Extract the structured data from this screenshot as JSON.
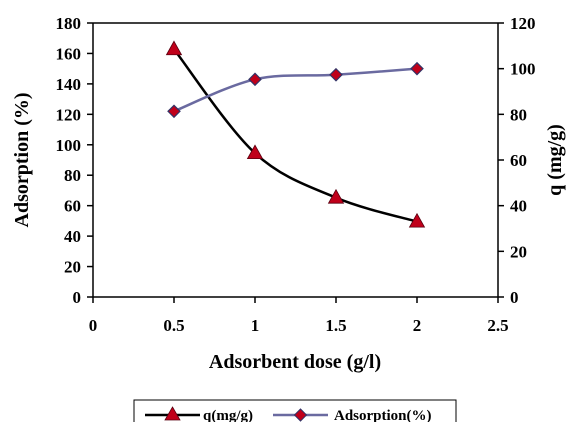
{
  "chart_data": {
    "type": "line",
    "title": "",
    "xlabel": "Adsorbent dose (g/l)",
    "ylabel": "Adsorption (%)",
    "y2label": "q (mg/g)",
    "xlim": [
      0,
      2.5
    ],
    "ylim": [
      0,
      180
    ],
    "y2lim": [
      0,
      120
    ],
    "xticks": [
      "0",
      "0.5",
      "1",
      "1.5",
      "2",
      "2.5"
    ],
    "yticks": [
      "0",
      "20",
      "40",
      "60",
      "80",
      "100",
      "120",
      "140",
      "160",
      "180"
    ],
    "y2ticks": [
      "0",
      "20",
      "40",
      "60",
      "80",
      "100",
      "120"
    ],
    "grid": false,
    "legend_position": "bottom",
    "series": [
      {
        "name": "q(mg/g)",
        "axis": "right",
        "color": "#000000",
        "marker": "triangle",
        "marker_color": "#c0001a",
        "x": [
          0.5,
          1,
          1.5,
          2
        ],
        "values": [
          108.5,
          63.0,
          43.5,
          33.0
        ]
      },
      {
        "name": "Adsorption(%)",
        "axis": "left",
        "color": "#6a6aa0",
        "marker": "diamond",
        "marker_color": "#c0001a",
        "x": [
          0.5,
          1,
          1.5,
          2
        ],
        "values": [
          122,
          143,
          146,
          150
        ]
      }
    ]
  }
}
